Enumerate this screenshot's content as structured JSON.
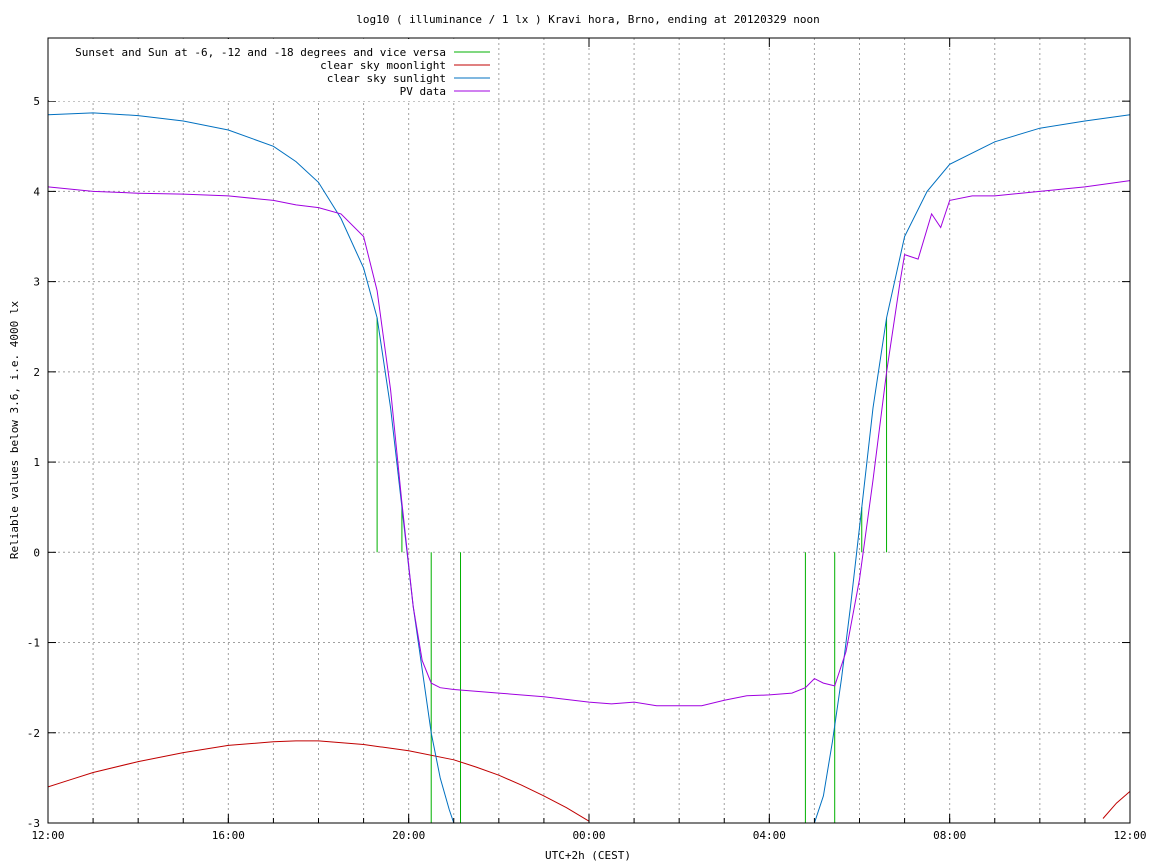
{
  "chart_data": {
    "type": "line",
    "title": "log10 ( illuminance / 1 lx ) Kravi hora, Brno, ending at 20120329 noon",
    "xlabel": "UTC+2h (CEST)",
    "ylabel": "Reliable values below 3.6, i.e. 4000 lx",
    "xlim": [
      12,
      36
    ],
    "ylim": [
      -3,
      5.7
    ],
    "x_tick_labels": [
      "12:00",
      "16:00",
      "20:00",
      "00:00",
      "04:00",
      "08:00",
      "12:00"
    ],
    "x_tick_hours": [
      12,
      16,
      20,
      24,
      28,
      32,
      36
    ],
    "y_ticks": [
      -3,
      -2,
      -1,
      0,
      1,
      2,
      3,
      4,
      5
    ],
    "grid": true,
    "legend_position": "top-left",
    "series": [
      {
        "name": "Sunset and Sun at -6, -12 and -18 degrees and vice versa",
        "color": "#00b000",
        "kind": "vertical-markers",
        "markers": [
          {
            "x": 19.3,
            "y_from": 0,
            "y_to": 2.6
          },
          {
            "x": 19.85,
            "y_from": 0,
            "y_to": 0.5
          },
          {
            "x": 20.5,
            "y_from": -3,
            "y_to": 0
          },
          {
            "x": 21.15,
            "y_from": -3,
            "y_to": 0
          },
          {
            "x": 28.8,
            "y_from": -3,
            "y_to": 0
          },
          {
            "x": 29.45,
            "y_from": -3,
            "y_to": 0
          },
          {
            "x": 30.05,
            "y_from": 0,
            "y_to": 0.5
          },
          {
            "x": 30.6,
            "y_from": 0,
            "y_to": 2.6
          }
        ]
      },
      {
        "name": "clear sky moonlight",
        "color": "#c00000",
        "x": [
          12.0,
          12.5,
          13.0,
          14.0,
          15.0,
          16.0,
          17.0,
          17.5,
          18.0,
          19.0,
          20.0,
          21.0,
          21.5,
          22.0,
          22.5,
          23.0,
          23.5,
          24.0,
          35.4,
          35.7,
          36.0
        ],
        "y": [
          -2.6,
          -2.52,
          -2.44,
          -2.32,
          -2.22,
          -2.14,
          -2.1,
          -2.09,
          -2.09,
          -2.13,
          -2.2,
          -2.3,
          -2.38,
          -2.47,
          -2.58,
          -2.7,
          -2.83,
          -2.98,
          -2.95,
          -2.78,
          -2.65
        ]
      },
      {
        "name": "clear sky sunlight",
        "color": "#0070c0",
        "x": [
          12.0,
          13.0,
          14.0,
          15.0,
          16.0,
          17.0,
          17.5,
          18.0,
          18.5,
          19.0,
          19.3,
          19.6,
          19.85,
          20.1,
          20.3,
          20.5,
          20.7,
          20.9,
          21.0,
          29.0,
          29.2,
          29.4,
          29.6,
          29.8,
          30.05,
          30.3,
          30.6,
          31.0,
          31.5,
          32.0,
          33.0,
          34.0,
          35.0,
          36.0
        ],
        "y": [
          4.85,
          4.87,
          4.84,
          4.78,
          4.68,
          4.5,
          4.33,
          4.1,
          3.7,
          3.15,
          2.6,
          1.6,
          0.5,
          -0.6,
          -1.3,
          -2.0,
          -2.5,
          -2.85,
          -3.0,
          -3.0,
          -2.7,
          -2.1,
          -1.4,
          -0.6,
          0.5,
          1.6,
          2.6,
          3.5,
          4.0,
          4.3,
          4.55,
          4.7,
          4.78,
          4.85
        ]
      },
      {
        "name": "PV data",
        "color": "#a000e0",
        "x": [
          12.0,
          13.0,
          14.0,
          15.0,
          16.0,
          17.0,
          17.5,
          18.0,
          18.5,
          19.0,
          19.3,
          19.6,
          19.85,
          20.1,
          20.3,
          20.5,
          20.7,
          21.0,
          22.0,
          23.0,
          24.0,
          24.5,
          25.0,
          25.5,
          26.0,
          26.5,
          27.0,
          27.5,
          28.0,
          28.5,
          28.8,
          29.0,
          29.2,
          29.45,
          29.7,
          30.0,
          30.3,
          30.6,
          30.9,
          31.0,
          31.3,
          31.6,
          31.8,
          32.0,
          32.5,
          33.0,
          34.0,
          35.0,
          36.0
        ],
        "y": [
          4.05,
          4.0,
          3.98,
          3.97,
          3.95,
          3.9,
          3.85,
          3.82,
          3.75,
          3.5,
          2.9,
          1.8,
          0.55,
          -0.6,
          -1.2,
          -1.45,
          -1.5,
          -1.52,
          -1.56,
          -1.6,
          -1.66,
          -1.68,
          -1.66,
          -1.7,
          -1.7,
          -1.7,
          -1.64,
          -1.59,
          -1.58,
          -1.56,
          -1.5,
          -1.4,
          -1.45,
          -1.48,
          -1.1,
          -0.3,
          0.8,
          2.0,
          3.0,
          3.3,
          3.25,
          3.75,
          3.6,
          3.9,
          3.95,
          3.95,
          4.0,
          4.05,
          4.12
        ]
      }
    ]
  }
}
